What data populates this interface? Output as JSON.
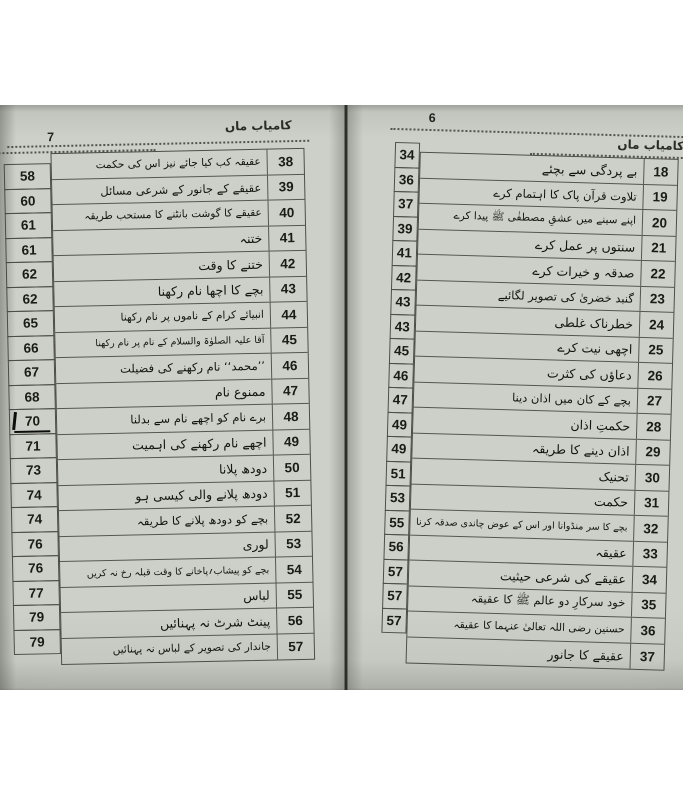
{
  "book": {
    "running_header": "کامیاب ماں",
    "colors": {
      "page": "#cdd0c9",
      "ink": "#14140f",
      "border": "#4d4e47"
    },
    "left_page": {
      "page_number": "7",
      "entries": [
        {
          "serial": "38",
          "title": "عقیقہ کب کیا جائے نیز اس کی حکمت",
          "page": "58"
        },
        {
          "serial": "39",
          "title": "عقیقے کے جانور کے شرعی مسائل",
          "page": "60"
        },
        {
          "serial": "40",
          "title": "عقیقے کا گوشت بانٹنے کا مستحب طریقہ",
          "page": "61"
        },
        {
          "serial": "41",
          "title": "ختنہ",
          "page": "61"
        },
        {
          "serial": "42",
          "title": "ختنے کا وقت",
          "page": "62"
        },
        {
          "serial": "43",
          "title": "بچے کا اچھا نام رکھنا",
          "page": "62"
        },
        {
          "serial": "44",
          "title": "انبیائے کرام کے ناموں پر نام رکھنا",
          "page": "65"
        },
        {
          "serial": "45",
          "title": "آقا علیہ الصلوٰۃ والسلام کے نام پر نام رکھنا",
          "page": "66"
        },
        {
          "serial": "46",
          "title": "’’محمد‘‘ نام رکھنے کی فضیلت",
          "page": "67"
        },
        {
          "serial": "47",
          "title": "ممنوع نام",
          "page": "68"
        },
        {
          "serial": "48",
          "title": "برے نام کو اچھے نام سے بدلنا",
          "page": "70",
          "ink_marked": true
        },
        {
          "serial": "49",
          "title": "اچھے نام رکھنے کی اہمیت",
          "page": "71"
        },
        {
          "serial": "50",
          "title": "دودھ پلانا",
          "page": "73"
        },
        {
          "serial": "51",
          "title": "دودھ پلانے والی کیسی ہو",
          "page": "74"
        },
        {
          "serial": "52",
          "title": "بچے کو دودھ پلانے کا طریقہ",
          "page": "74"
        },
        {
          "serial": "53",
          "title": "لوری",
          "page": "76"
        },
        {
          "serial": "54",
          "title": "بچے کو پیشاب؍پاخانے کا وقت قبلہ رخ نہ کریں",
          "page": "76"
        },
        {
          "serial": "55",
          "title": "لباس",
          "page": "77"
        },
        {
          "serial": "56",
          "title": "پینٹ شرٹ نہ پہنائیں",
          "page": "79"
        },
        {
          "serial": "57",
          "title": "جاندار کی تصویر کے لباس نہ پہنائیں",
          "page": "79"
        }
      ]
    },
    "right_page": {
      "page_number": "6",
      "entries": [
        {
          "serial": "18",
          "title": "بے پردگی سے بچئے",
          "page": "34"
        },
        {
          "serial": "19",
          "title": "تلاوت قرآن پاک کا اہتمام کرے",
          "page": "36"
        },
        {
          "serial": "20",
          "title": "اپنے سینے میں عشقِ مصطفٰی ﷺ پیدا کرے",
          "page": "37"
        },
        {
          "serial": "21",
          "title": "سنتوں پر عمل کرے",
          "page": "39"
        },
        {
          "serial": "22",
          "title": "صدقہ و خیرات کرے",
          "page": "41"
        },
        {
          "serial": "23",
          "title": "گنبد خضریٰ کی تصویر لگائیے",
          "page": "42"
        },
        {
          "serial": "24",
          "title": "خطرناک غلطی",
          "page": "43"
        },
        {
          "serial": "25",
          "title": "اچھی نیت کرے",
          "page": "43"
        },
        {
          "serial": "26",
          "title": "دعاؤں کی کثرت",
          "page": "45"
        },
        {
          "serial": "27",
          "title": "بچے کے کان میں اذان دینا",
          "page": "46"
        },
        {
          "serial": "28",
          "title": "حکمتِ اذان",
          "page": "47"
        },
        {
          "serial": "29",
          "title": "اذان دینے کا طریقہ",
          "page": "49"
        },
        {
          "serial": "30",
          "title": "تحنیک",
          "page": "49"
        },
        {
          "serial": "31",
          "title": "حکمت",
          "page": "51"
        },
        {
          "serial": "32",
          "title": "بچے کا سر منڈوانا اور اس کے عوض چاندی صدقہ کرنا",
          "page": "53"
        },
        {
          "serial": "33",
          "title": "عقیقہ",
          "page": "55"
        },
        {
          "serial": "34",
          "title": "عقیقے کی شرعی حیثیت",
          "page": "56"
        },
        {
          "serial": "35",
          "title": "خود سرکارِ دو عالم ﷺ کا عقیقہ",
          "page": "57"
        },
        {
          "serial": "36",
          "title": "حسنین رضی اللہ تعالیٰ عنہما کا عقیقہ",
          "page": "57"
        },
        {
          "serial": "37",
          "title": "عقیقے کا جانور",
          "page": "57"
        }
      ]
    }
  }
}
